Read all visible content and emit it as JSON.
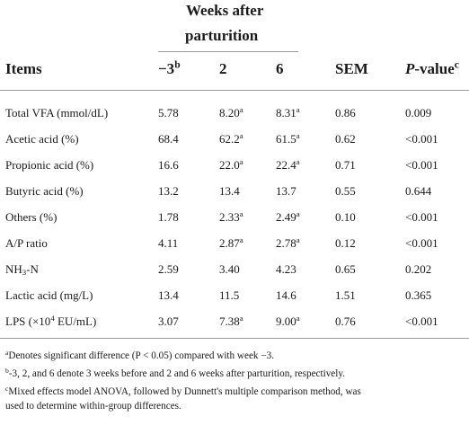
{
  "header": {
    "group_line1": "Weeks after",
    "group_line2": "parturition",
    "col_items": "Items",
    "col_w1": "−3",
    "col_w1_sup": "b",
    "col_w2": "2",
    "col_w3": "6",
    "col_sem": "SEM",
    "col_p_italic": "P",
    "col_p_rest": "-value",
    "col_p_sup": "c"
  },
  "rows": [
    {
      "item": "Total VFA (mmol/dL)",
      "w1": "5.78",
      "w1_sup": "",
      "w2": "8.20",
      "w2_sup": "a",
      "w3": "8.31",
      "w3_sup": "a",
      "sem": "0.86",
      "p": "0.009"
    },
    {
      "item": "Acetic acid (%)",
      "w1": "68.4",
      "w1_sup": "",
      "w2": "62.2",
      "w2_sup": "a",
      "w3": "61.5",
      "w3_sup": "a",
      "sem": "0.62",
      "p": "<0.001"
    },
    {
      "item": "Propionic acid (%)",
      "w1": "16.6",
      "w1_sup": "",
      "w2": "22.0",
      "w2_sup": "a",
      "w3": "22.4",
      "w3_sup": "a",
      "sem": "0.71",
      "p": "<0.001"
    },
    {
      "item": "Butyric acid (%)",
      "w1": "13.2",
      "w1_sup": "",
      "w2": "13.4",
      "w2_sup": "",
      "w3": "13.7",
      "w3_sup": "",
      "sem": "0.55",
      "p": "0.644"
    },
    {
      "item": "Others (%)",
      "w1": "1.78",
      "w1_sup": "",
      "w2": "2.33",
      "w2_sup": "a",
      "w3": "2.49",
      "w3_sup": "a",
      "sem": "0.10",
      "p": "<0.001"
    },
    {
      "item": "A/P ratio",
      "w1": "4.11",
      "w1_sup": "",
      "w2": "2.87",
      "w2_sup": "a",
      "w3": "2.78",
      "w3_sup": "a",
      "sem": "0.12",
      "p": "<0.001"
    },
    {
      "item_prefix": "NH",
      "item_sub": "3",
      "item_suffix": "-N",
      "w1": "2.59",
      "w1_sup": "",
      "w2": "3.40",
      "w2_sup": "",
      "w3": "4.23",
      "w3_sup": "",
      "sem": "0.65",
      "p": "0.202"
    },
    {
      "item": "Lactic acid (mg/L)",
      "w1": "13.4",
      "w1_sup": "",
      "w2": "11.5",
      "w2_sup": "",
      "w3": "14.6",
      "w3_sup": "",
      "sem": "1.51",
      "p": "0.365"
    },
    {
      "item_prefix": "LPS (×10",
      "item_sup": "4",
      "item_suffix": " EU/mL)",
      "w1": "3.07",
      "w1_sup": "",
      "w2": "7.38",
      "w2_sup": "a",
      "w3": "9.00",
      "w3_sup": "a",
      "sem": "0.76",
      "p": "<0.001"
    }
  ],
  "footnotes": [
    {
      "mark": "a",
      "lines": [
        "Denotes significant difference (P < 0.05) compared with week −3."
      ]
    },
    {
      "mark": "b",
      "lines": [
        "-3, 2, and 6 denote 3 weeks before and 2 and 6 weeks after parturition, respectively."
      ]
    },
    {
      "mark": "c",
      "lines": [
        "Mixed effects model ANOVA, followed by Dunnett's multiple comparison method, was",
        "used to determine within-group differences."
      ]
    }
  ]
}
